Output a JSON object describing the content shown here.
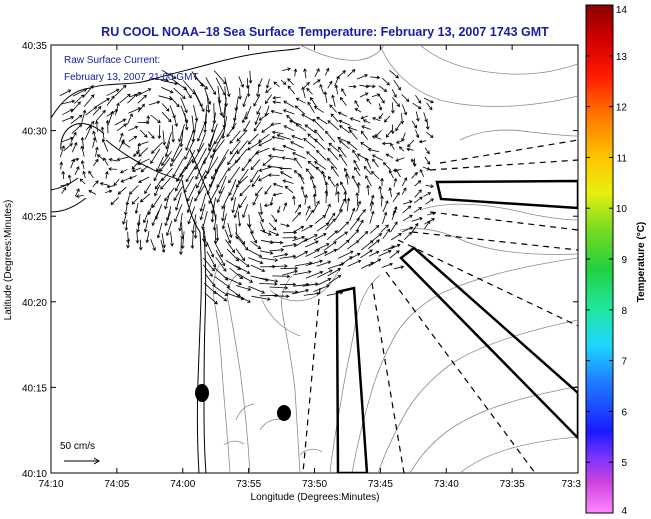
{
  "title": "RU COOL  NOAA–18  Sea Surface Temperature:  February 13, 2007 1743 GMT",
  "overlay": {
    "line1": "Raw Surface Current:",
    "line2": "February 13, 2007 21:00 GMT"
  },
  "axes": {
    "xlabel": "Longitude (Degrees:Minutes)",
    "ylabel": "Latitude (Degrees:Minutes)",
    "xticks": [
      "74:10",
      "74:05",
      "74:00",
      "73:55",
      "73:50",
      "73:45",
      "73:40",
      "73:35",
      "73:3"
    ],
    "yticks": [
      "40:35",
      "40:30",
      "40:25",
      "40:20",
      "40:15",
      "40:10"
    ]
  },
  "scale_label": "50 cm/s",
  "colorbar": {
    "label": "Temperature (°C)",
    "ticks": [
      "14",
      "13",
      "12",
      "11",
      "10",
      "9",
      "8",
      "7",
      "6",
      "5",
      "4"
    ],
    "min": 4,
    "max": 14
  },
  "colors": {
    "title": "#1a1aa8",
    "overlay_text": "#1a1aa8",
    "coast": "#000000",
    "bathymetry": "#8a8a8a"
  }
}
